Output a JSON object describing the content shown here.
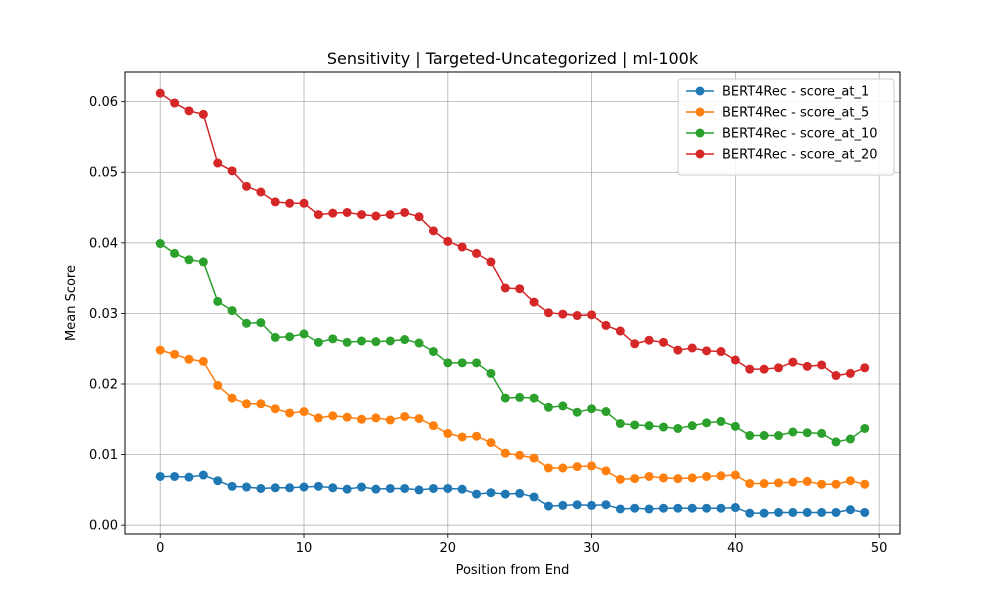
{
  "chart_data": {
    "type": "line",
    "title": "Sensitivity | Targeted-Uncategorized | ml-100k",
    "xlabel": "Position from End",
    "ylabel": "Mean Score",
    "xlim": [
      -2.45,
      51.45
    ],
    "ylim": [
      -0.00125,
      0.0642
    ],
    "x_ticks": [
      0,
      10,
      20,
      30,
      40,
      50
    ],
    "y_ticks": [
      0.0,
      0.01,
      0.02,
      0.03,
      0.04,
      0.05,
      0.06
    ],
    "x_tick_labels": [
      "0",
      "10",
      "20",
      "30",
      "40",
      "50"
    ],
    "y_tick_labels": [
      "0.00",
      "0.01",
      "0.02",
      "0.03",
      "0.04",
      "0.05",
      "0.06"
    ],
    "grid": true,
    "legend_position": "top-right",
    "x": [
      0,
      1,
      2,
      3,
      4,
      5,
      6,
      7,
      8,
      9,
      10,
      11,
      12,
      13,
      14,
      15,
      16,
      17,
      18,
      19,
      20,
      21,
      22,
      23,
      24,
      25,
      26,
      27,
      28,
      29,
      30,
      31,
      32,
      33,
      34,
      35,
      36,
      37,
      38,
      39,
      40,
      41,
      42,
      43,
      44,
      45,
      46,
      47,
      48,
      49
    ],
    "series": [
      {
        "name": "BERT4Rec - score_at_1",
        "color": "#1f77b4",
        "values": [
          0.0069,
          0.0069,
          0.0068,
          0.0071,
          0.0063,
          0.0055,
          0.0054,
          0.0052,
          0.0053,
          0.0053,
          0.0054,
          0.0055,
          0.0053,
          0.0051,
          0.0054,
          0.0051,
          0.0052,
          0.0052,
          0.005,
          0.0052,
          0.0052,
          0.0051,
          0.0044,
          0.0046,
          0.0044,
          0.0045,
          0.004,
          0.0027,
          0.0028,
          0.0029,
          0.0028,
          0.0029,
          0.0023,
          0.0024,
          0.0023,
          0.0024,
          0.0024,
          0.0024,
          0.0024,
          0.0024,
          0.0025,
          0.0017,
          0.0017,
          0.0018,
          0.0018,
          0.0018,
          0.0018,
          0.0018,
          0.0022,
          0.0018
        ]
      },
      {
        "name": "BERT4Rec - score_at_5",
        "color": "#ff7f0e",
        "values": [
          0.0248,
          0.0242,
          0.0235,
          0.0232,
          0.0198,
          0.018,
          0.0172,
          0.0172,
          0.0165,
          0.0159,
          0.0161,
          0.0152,
          0.0155,
          0.0153,
          0.015,
          0.0152,
          0.0149,
          0.0154,
          0.0151,
          0.0141,
          0.013,
          0.0125,
          0.0126,
          0.0117,
          0.0102,
          0.0099,
          0.0095,
          0.0081,
          0.0081,
          0.0083,
          0.0084,
          0.0077,
          0.0065,
          0.0066,
          0.0069,
          0.0067,
          0.0066,
          0.0067,
          0.0069,
          0.007,
          0.0071,
          0.0059,
          0.0059,
          0.006,
          0.0061,
          0.0062,
          0.0058,
          0.0058,
          0.0063,
          0.0058
        ]
      },
      {
        "name": "BERT4Rec - score_at_10",
        "color": "#2ca02c",
        "values": [
          0.0399,
          0.0385,
          0.0376,
          0.0373,
          0.0317,
          0.0304,
          0.0286,
          0.0287,
          0.0266,
          0.0267,
          0.0271,
          0.0259,
          0.0264,
          0.0259,
          0.0261,
          0.026,
          0.0261,
          0.0263,
          0.0258,
          0.0246,
          0.023,
          0.023,
          0.023,
          0.0215,
          0.018,
          0.0181,
          0.018,
          0.0167,
          0.0169,
          0.016,
          0.0165,
          0.0161,
          0.0144,
          0.0142,
          0.0141,
          0.0139,
          0.0137,
          0.0141,
          0.0145,
          0.0147,
          0.014,
          0.0127,
          0.0127,
          0.0127,
          0.0132,
          0.0131,
          0.013,
          0.0118,
          0.0122,
          0.0137
        ]
      },
      {
        "name": "BERT4Rec - score_at_20",
        "color": "#d62728",
        "values": [
          0.0612,
          0.0598,
          0.0587,
          0.0582,
          0.0513,
          0.0502,
          0.048,
          0.0472,
          0.0458,
          0.0456,
          0.0456,
          0.044,
          0.0442,
          0.0443,
          0.044,
          0.0438,
          0.044,
          0.0443,
          0.0437,
          0.0417,
          0.0402,
          0.0394,
          0.0385,
          0.0373,
          0.0336,
          0.0335,
          0.0316,
          0.0301,
          0.0299,
          0.0297,
          0.0298,
          0.0283,
          0.0275,
          0.0257,
          0.0262,
          0.0259,
          0.0248,
          0.0251,
          0.0247,
          0.0246,
          0.0234,
          0.0221,
          0.0221,
          0.0223,
          0.0231,
          0.0225,
          0.0227,
          0.0212,
          0.0215,
          0.0223
        ]
      }
    ]
  }
}
